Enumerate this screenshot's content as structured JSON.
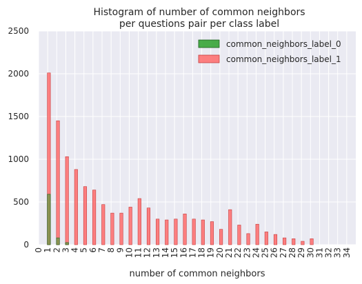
{
  "chart_data": {
    "type": "bar",
    "title": "Histogram of number of common neighbors\nper questions pair per class label",
    "xlabel": "number of common neighbors",
    "ylabel": "",
    "xlim": [
      0,
      35
    ],
    "ylim": [
      0,
      2500
    ],
    "x_ticks": [
      0,
      1,
      2,
      3,
      4,
      5,
      6,
      7,
      8,
      9,
      10,
      11,
      12,
      13,
      14,
      15,
      16,
      17,
      18,
      19,
      20,
      21,
      22,
      23,
      24,
      25,
      26,
      27,
      28,
      29,
      30,
      31,
      32,
      33,
      34
    ],
    "y_ticks": [
      0,
      500,
      1000,
      1500,
      2000,
      2500
    ],
    "grid": true,
    "legend_position": "top-right",
    "series": [
      {
        "name": "common_neighbors_label_0",
        "color": "#2ca02c",
        "x": [
          1,
          2,
          3
        ],
        "values": [
          590,
          80,
          25
        ]
      },
      {
        "name": "common_neighbors_label_1",
        "color": "#ff6b6b",
        "x": [
          1,
          2,
          3,
          4,
          5,
          6,
          7,
          8,
          9,
          10,
          11,
          12,
          13,
          14,
          15,
          16,
          17,
          18,
          19,
          20,
          21,
          22,
          23,
          24,
          25,
          26,
          27,
          28,
          29,
          30
        ],
        "values": [
          2010,
          1450,
          1030,
          880,
          680,
          640,
          470,
          370,
          370,
          440,
          540,
          430,
          300,
          290,
          300,
          360,
          300,
          290,
          270,
          180,
          410,
          230,
          130,
          240,
          150,
          120,
          80,
          70,
          40,
          70
        ]
      }
    ]
  }
}
